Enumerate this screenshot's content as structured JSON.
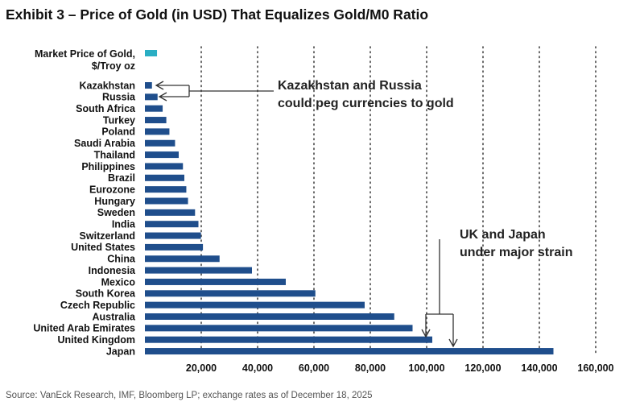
{
  "title": "Exhibit 3 – Price of Gold (in USD) That Equalizes Gold/M0 Ratio",
  "source": "Source: VanEck Research, IMF, Bloomberg LP; exchange rates as of December 18, 2025",
  "colors": {
    "bar": "#1f4e8c",
    "market": "#2aaec3",
    "grid": "#444444",
    "arrow": "#333333"
  },
  "chart_data": {
    "type": "bar",
    "orientation": "horizontal",
    "title": "Exhibit 3 – Price of Gold (in USD) That Equalizes Gold/M0 Ratio",
    "xlabel": "",
    "ylabel": "",
    "xlim": [
      0,
      160000
    ],
    "xticks": [
      20000,
      40000,
      60000,
      80000,
      100000,
      120000,
      140000,
      160000
    ],
    "xtick_labels": [
      "20,000",
      "40,000",
      "60,000",
      "80,000",
      "100,000",
      "120,000",
      "140,000",
      "160,000"
    ],
    "grid": "vertical dotted",
    "market": {
      "label_line1": "Market Price of Gold,",
      "label_line2": "$/Troy oz",
      "value": 4300
    },
    "categories": [
      "Kazakhstan",
      "Russia",
      "South Africa",
      "Turkey",
      "Poland",
      "Saudi Arabia",
      "Thailand",
      "Philippines",
      "Brazil",
      "Eurozone",
      "Hungary",
      "Sweden",
      "India",
      "Switzerland",
      "United States",
      "China",
      "Indonesia",
      "Mexico",
      "South Korea",
      "Czech Republic",
      "Australia",
      "United Arab Emirates",
      "United Kingdom",
      "Japan"
    ],
    "values": [
      2500,
      4500,
      6300,
      7600,
      8700,
      10700,
      12000,
      13500,
      14000,
      14700,
      15300,
      17800,
      19000,
      19900,
      20600,
      26500,
      38000,
      50000,
      60500,
      78000,
      88500,
      95000,
      102000,
      145000
    ],
    "annotations": [
      {
        "line1": "Kazakhstan and Russia",
        "line2": "could peg currencies to gold",
        "targets": [
          "Kazakhstan",
          "Russia"
        ]
      },
      {
        "line1": "UK and Japan",
        "line2": "under major strain",
        "targets": [
          "United Kingdom",
          "Japan"
        ]
      }
    ]
  }
}
